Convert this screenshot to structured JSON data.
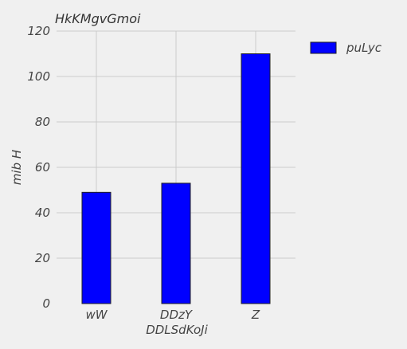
{
  "chart_data": {
    "type": "bar",
    "title": "HkKMgvGmoi",
    "xlabel": "DDLSdKoJi",
    "ylabel": "mib  H",
    "categories": [
      "wW",
      "DDzY",
      "Z"
    ],
    "series": [
      {
        "name": "puLyc",
        "values": [
          49,
          53,
          110
        ]
      }
    ],
    "ylim": [
      0,
      120
    ],
    "yticks": [
      0,
      20,
      40,
      60,
      80,
      100,
      120
    ],
    "grid": true,
    "legend_position": "top-right",
    "colors": {
      "bar": "#0000ff",
      "bar_edge": "#222222",
      "grid": "#cbcbcb",
      "background": "#f0f0f0"
    }
  }
}
